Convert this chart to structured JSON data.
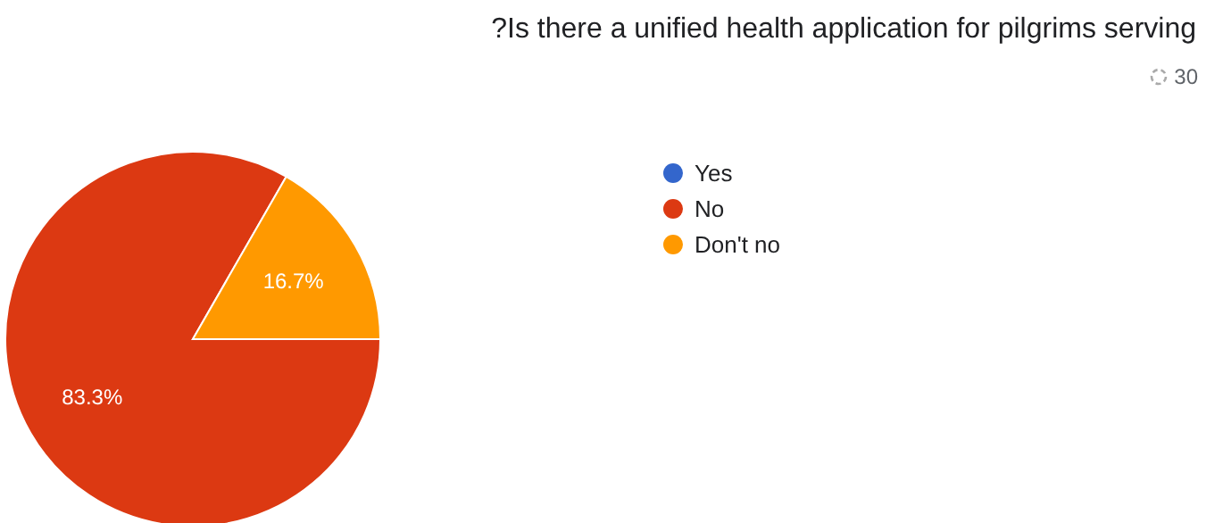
{
  "chart_data": {
    "type": "pie",
    "title": "?Is there a unified health application for pilgrims serving",
    "subtitle": "30",
    "categories": [
      "Yes",
      "No",
      "Don't no"
    ],
    "values": [
      0,
      83.3,
      16.7
    ],
    "colors": [
      "#3366cc",
      "#dc3912",
      "#ff9900"
    ],
    "value_labels": [
      null,
      "83.3%",
      "16.7%"
    ],
    "legend": "right"
  }
}
